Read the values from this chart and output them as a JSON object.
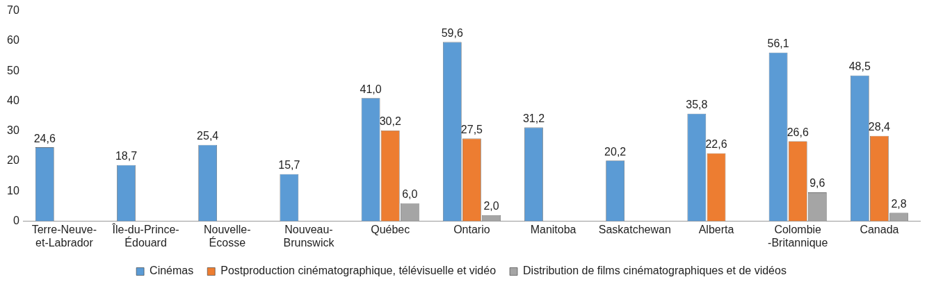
{
  "chart_data": {
    "type": "bar",
    "categories": [
      "Terre-Neuve-\net-Labrador",
      "Île-du-Prince-\nÉdouard",
      "Nouvelle-\nÉcosse",
      "Nouveau-\nBrunswick",
      "Québec",
      "Ontario",
      "Manitoba",
      "Saskatchewan",
      "Alberta",
      "Colombie\n-Britannique",
      "Canada"
    ],
    "series": [
      {
        "name": "Cinémas",
        "color": "#5b9bd5",
        "values": [
          24.6,
          18.7,
          25.4,
          15.7,
          41.0,
          59.6,
          31.2,
          20.2,
          35.8,
          56.1,
          48.5
        ],
        "value_labels": [
          "24,6",
          "18,7",
          "25,4",
          "15,7",
          "41,0",
          "59,6",
          "31,2",
          "20,2",
          "35,8",
          "56,1",
          "48,5"
        ]
      },
      {
        "name": "Postproduction cinématographique, télévisuelle et vidéo",
        "color": "#ed7d31",
        "values": [
          null,
          null,
          null,
          null,
          30.2,
          27.5,
          null,
          null,
          22.6,
          26.6,
          28.4
        ],
        "value_labels": [
          null,
          null,
          null,
          null,
          "30,2",
          "27,5",
          null,
          null,
          "22,6",
          "26,6",
          "28,4"
        ]
      },
      {
        "name": "Distribution de films cinématographiques et de vidéos",
        "color": "#a5a5a5",
        "values": [
          null,
          null,
          null,
          null,
          6.0,
          2.0,
          null,
          null,
          null,
          9.6,
          2.8
        ],
        "value_labels": [
          null,
          null,
          null,
          null,
          "6,0",
          "2,0",
          null,
          null,
          null,
          "9,6",
          "2,8"
        ]
      }
    ],
    "ylim": [
      0,
      70
    ],
    "yticks": [
      0,
      10,
      20,
      30,
      40,
      50,
      60,
      70
    ],
    "grid": false,
    "legend": "bottom"
  }
}
